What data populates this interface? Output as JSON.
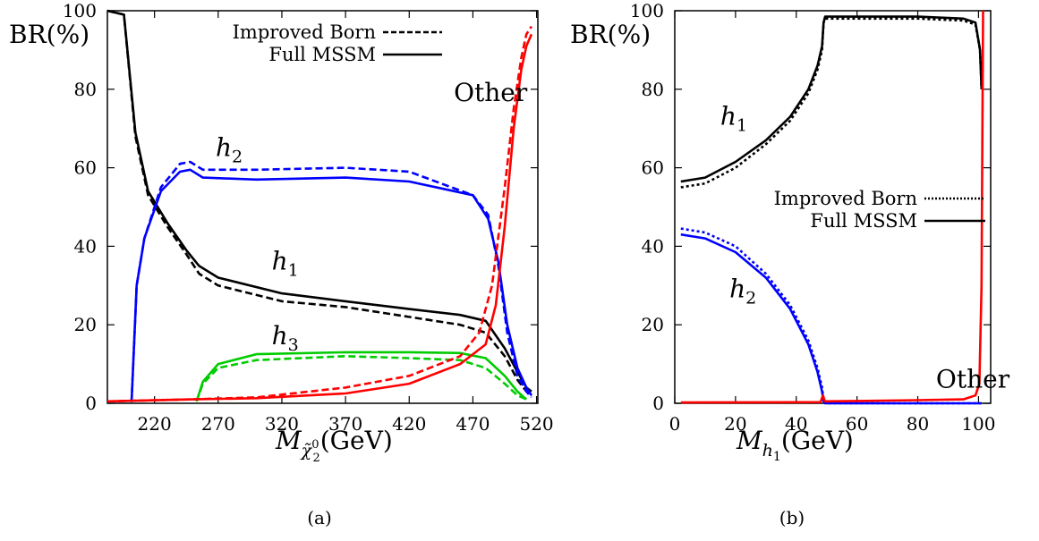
{
  "chart_data": [
    {
      "type": "line",
      "caption": "(a)",
      "ylabel": "BR(%)",
      "xlabel_main": "M",
      "xlabel_sub": "χ̃",
      "xlabel_subsub": "0",
      "xlabel_subsub2": "2",
      "xlabel_unit": "(GeV)",
      "xlim": [
        183,
        521
      ],
      "ylim": [
        0,
        100
      ],
      "xticks": [
        220,
        270,
        320,
        370,
        420,
        470,
        520
      ],
      "yticks": [
        0,
        20,
        40,
        60,
        80,
        100
      ],
      "legend": [
        {
          "label": "Improved Born",
          "style": "dashed"
        },
        {
          "label": "Full MSSM",
          "style": "solid"
        }
      ],
      "annotations": [
        {
          "text": "h",
          "sub": "2",
          "x": 268,
          "y": 63
        },
        {
          "text": "h",
          "sub": "1",
          "x": 312,
          "y": 34
        },
        {
          "text": "h",
          "sub": "3",
          "x": 312,
          "y": 15
        },
        {
          "text": "Other",
          "x": 455,
          "y": 77
        }
      ],
      "series": [
        {
          "color": "#000000",
          "dashed": true,
          "points": [
            [
              183,
              100
            ],
            [
              196,
              99
            ],
            [
              205,
              68
            ],
            [
              215,
              53
            ],
            [
              230,
              45
            ],
            [
              245,
              38
            ],
            [
              255,
              33
            ],
            [
              270,
              30
            ],
            [
              320,
              26
            ],
            [
              370,
              24.5
            ],
            [
              420,
              22
            ],
            [
              460,
              20
            ],
            [
              480,
              18
            ],
            [
              495,
              12
            ],
            [
              505,
              6
            ],
            [
              512,
              3
            ],
            [
              516,
              2
            ]
          ]
        },
        {
          "color": "#000000",
          "dashed": false,
          "points": [
            [
              183,
              100
            ],
            [
              196,
              99
            ],
            [
              205,
              69
            ],
            [
              215,
              54
            ],
            [
              230,
              46
            ],
            [
              245,
              39
            ],
            [
              255,
              35
            ],
            [
              270,
              32
            ],
            [
              320,
              28
            ],
            [
              370,
              26
            ],
            [
              420,
              24
            ],
            [
              460,
              22.5
            ],
            [
              480,
              21
            ],
            [
              495,
              14
            ],
            [
              505,
              8
            ],
            [
              512,
              4
            ],
            [
              516,
              3
            ]
          ]
        },
        {
          "color": "#0000ff",
          "dashed": true,
          "points": [
            [
              202,
              0.3
            ],
            [
              206,
              30
            ],
            [
              212,
              42
            ],
            [
              225,
              55
            ],
            [
              240,
              61
            ],
            [
              248,
              61.5
            ],
            [
              258,
              59.5
            ],
            [
              300,
              59.5
            ],
            [
              370,
              60
            ],
            [
              420,
              59
            ],
            [
              470,
              53
            ],
            [
              482,
              48
            ],
            [
              490,
              35
            ],
            [
              497,
              18
            ],
            [
              505,
              7
            ],
            [
              512,
              3
            ],
            [
              516,
              1.5
            ]
          ]
        },
        {
          "color": "#0000ff",
          "dashed": false,
          "points": [
            [
              202,
              0.3
            ],
            [
              206,
              30
            ],
            [
              212,
              42
            ],
            [
              225,
              54
            ],
            [
              240,
              59
            ],
            [
              248,
              59.5
            ],
            [
              258,
              57.5
            ],
            [
              300,
              57
            ],
            [
              370,
              57.5
            ],
            [
              420,
              56.5
            ],
            [
              470,
              53
            ],
            [
              482,
              47
            ],
            [
              490,
              36
            ],
            [
              497,
              20
            ],
            [
              505,
              9
            ],
            [
              512,
              4
            ],
            [
              516,
              2
            ]
          ]
        },
        {
          "color": "#00cc00",
          "dashed": true,
          "points": [
            [
              253,
              0.5
            ],
            [
              258,
              5
            ],
            [
              270,
              9
            ],
            [
              300,
              11
            ],
            [
              370,
              12
            ],
            [
              420,
              11.5
            ],
            [
              460,
              11
            ],
            [
              480,
              9
            ],
            [
              495,
              5
            ],
            [
              505,
              2
            ],
            [
              512,
              1
            ]
          ]
        },
        {
          "color": "#00cc00",
          "dashed": false,
          "points": [
            [
              253,
              0.5
            ],
            [
              258,
              5.5
            ],
            [
              270,
              10
            ],
            [
              300,
              12.5
            ],
            [
              370,
              13
            ],
            [
              420,
              13
            ],
            [
              460,
              12.8
            ],
            [
              480,
              11.5
            ],
            [
              495,
              7
            ],
            [
              505,
              3
            ],
            [
              512,
              1
            ]
          ]
        },
        {
          "color": "#ff0000",
          "dashed": true,
          "points": [
            [
              183,
              0.5
            ],
            [
              250,
              1
            ],
            [
              300,
              1.5
            ],
            [
              370,
              4
            ],
            [
              420,
              7
            ],
            [
              460,
              12
            ],
            [
              475,
              18
            ],
            [
              485,
              30
            ],
            [
              495,
              55
            ],
            [
              502,
              75
            ],
            [
              508,
              88
            ],
            [
              512,
              94
            ],
            [
              516,
              96
            ]
          ]
        },
        {
          "color": "#ff0000",
          "dashed": false,
          "points": [
            [
              183,
              0.5
            ],
            [
              250,
              1
            ],
            [
              300,
              1.3
            ],
            [
              370,
              2.5
            ],
            [
              420,
              5
            ],
            [
              460,
              10
            ],
            [
              480,
              15
            ],
            [
              488,
              25
            ],
            [
              495,
              45
            ],
            [
              502,
              70
            ],
            [
              508,
              85
            ],
            [
              512,
              91
            ],
            [
              516,
              94
            ]
          ]
        }
      ]
    },
    {
      "type": "line",
      "caption": "(b)",
      "ylabel": "BR(%)",
      "xlabel_main": "M",
      "xlabel_sub": "h",
      "xlabel_subsub": "1",
      "xlabel_unit": "(GeV)",
      "xlim": [
        0,
        104
      ],
      "ylim": [
        0,
        100
      ],
      "xticks": [
        0,
        20,
        40,
        60,
        80,
        100
      ],
      "yticks": [
        0,
        20,
        40,
        60,
        80,
        100
      ],
      "legend": [
        {
          "label": "Improved Born",
          "style": "dotted"
        },
        {
          "label": "Full MSSM",
          "style": "solid"
        }
      ],
      "annotations": [
        {
          "text": "h",
          "sub": "1",
          "x": 15,
          "y": 71
        },
        {
          "text": "h",
          "sub": "2",
          "x": 18,
          "y": 27
        },
        {
          "text": "Other",
          "x": 86,
          "y": 4
        }
      ],
      "series": [
        {
          "color": "#000000",
          "dashed": true,
          "points": [
            [
              2,
              55
            ],
            [
              10,
              56
            ],
            [
              20,
              60
            ],
            [
              30,
              66
            ],
            [
              38,
              72
            ],
            [
              44,
              79
            ],
            [
              47,
              85
            ],
            [
              48.5,
              90
            ],
            [
              49,
              97
            ],
            [
              49.5,
              98
            ],
            [
              60,
              98
            ],
            [
              80,
              98
            ],
            [
              95,
              97.5
            ],
            [
              99,
              96.5
            ],
            [
              100.5,
              90
            ],
            [
              101,
              80
            ]
          ]
        },
        {
          "color": "#000000",
          "dashed": false,
          "points": [
            [
              2,
              56.5
            ],
            [
              10,
              57.5
            ],
            [
              20,
              61.5
            ],
            [
              30,
              67
            ],
            [
              38,
              73
            ],
            [
              44,
              80
            ],
            [
              47,
              86
            ],
            [
              48.5,
              91
            ],
            [
              49,
              97
            ],
            [
              49.5,
              98.5
            ],
            [
              60,
              98.5
            ],
            [
              80,
              98.5
            ],
            [
              95,
              98
            ],
            [
              99,
              97
            ],
            [
              100.5,
              90
            ],
            [
              101,
              80
            ]
          ]
        },
        {
          "color": "#0000ff",
          "dashed": true,
          "points": [
            [
              2,
              44.5
            ],
            [
              10,
              43.5
            ],
            [
              20,
              40
            ],
            [
              30,
              33
            ],
            [
              38,
              25
            ],
            [
              44,
              16
            ],
            [
              47,
              9
            ],
            [
              48.5,
              4
            ],
            [
              49,
              0.5
            ],
            [
              49.5,
              0
            ],
            [
              101,
              0
            ]
          ]
        },
        {
          "color": "#0000ff",
          "dashed": false,
          "points": [
            [
              2,
              43
            ],
            [
              10,
              42
            ],
            [
              20,
              38.5
            ],
            [
              30,
              32
            ],
            [
              38,
              24
            ],
            [
              44,
              15
            ],
            [
              47,
              8
            ],
            [
              48.5,
              3
            ],
            [
              49,
              0.5
            ],
            [
              49.5,
              0
            ],
            [
              101,
              0
            ]
          ]
        },
        {
          "color": "#ff0000",
          "dashed": false,
          "points": [
            [
              2,
              0.2
            ],
            [
              48,
              0.3
            ],
            [
              48.8,
              2
            ],
            [
              49.4,
              0.5
            ],
            [
              60,
              0.6
            ],
            [
              80,
              0.8
            ],
            [
              95,
              1
            ],
            [
              99,
              2
            ],
            [
              100.3,
              5
            ],
            [
              101,
              30
            ],
            [
              101.5,
              100
            ]
          ]
        }
      ]
    }
  ]
}
